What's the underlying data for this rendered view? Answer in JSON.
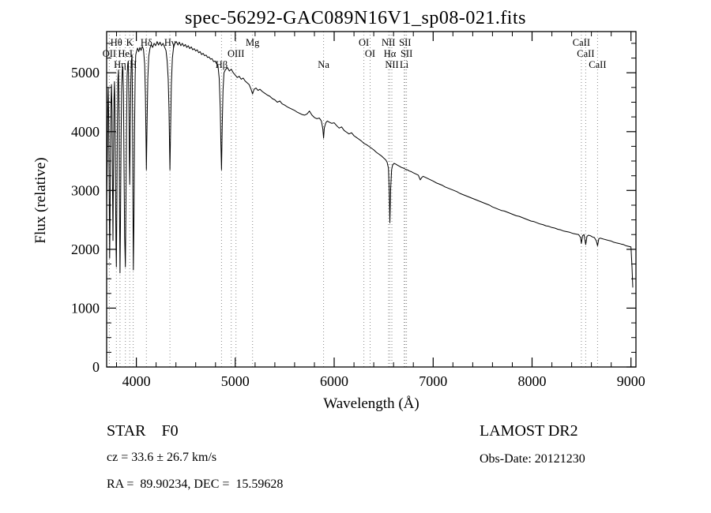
{
  "title": "spec-56292-GAC089N16V1_sp08-021.fits",
  "footer": {
    "class_label": "STAR    F0",
    "survey": "LAMOST DR2",
    "cz": "cz = 33.6 ± 26.7 km/s",
    "obs_date": "Obs-Date: 20121230",
    "coords": "RA =  89.90234, DEC =  15.59628"
  },
  "chart_data": {
    "type": "line",
    "title": "spec-56292-GAC089N16V1_sp08-021.fits",
    "xlabel": "Wavelength (Å)",
    "ylabel": "Flux (relative)",
    "xlim": [
      3700,
      9050
    ],
    "ylim": [
      0,
      5700
    ],
    "x_ticks": [
      4000,
      5000,
      6000,
      7000,
      8000,
      9000
    ],
    "y_ticks": [
      0,
      1000,
      2000,
      3000,
      4000,
      5000
    ],
    "x_minor_step": 200,
    "y_minor_step": 250,
    "grid": false,
    "line_color": "#000000",
    "marker_line_color": "#888888",
    "line_markers": [
      {
        "label": "Hθ",
        "wavelength": 3798,
        "row": 1
      },
      {
        "label": "K",
        "wavelength": 3933,
        "row": 1
      },
      {
        "label": "Hδ",
        "wavelength": 4102,
        "row": 1
      },
      {
        "label": "Hγ",
        "wavelength": 4340,
        "row": 1
      },
      {
        "label": "Mg",
        "wavelength": 5175,
        "row": 1
      },
      {
        "label": "OI",
        "wavelength": 6300,
        "row": 1
      },
      {
        "label": "NII",
        "wavelength": 6548,
        "row": 1
      },
      {
        "label": "SII",
        "wavelength": 6717,
        "row": 1
      },
      {
        "label": "CaII",
        "wavelength": 8498,
        "row": 1
      },
      {
        "label": "OII",
        "wavelength": 3727,
        "row": 2
      },
      {
        "label": "HeI",
        "wavelength": 3889,
        "row": 2
      },
      {
        "label": "",
        "wavelength": 4959,
        "row": 2
      },
      {
        "label": "OIII",
        "wavelength": 5007,
        "row": 2
      },
      {
        "label": "OI",
        "wavelength": 6363,
        "row": 2
      },
      {
        "label": "Hα",
        "wavelength": 6563,
        "row": 2
      },
      {
        "label": "SII",
        "wavelength": 6731,
        "row": 2
      },
      {
        "label": "CaII",
        "wavelength": 8542,
        "row": 2
      },
      {
        "label": "Hη",
        "wavelength": 3835,
        "row": 3
      },
      {
        "label": "H",
        "wavelength": 3968,
        "row": 3
      },
      {
        "label": "Hβ",
        "wavelength": 4861,
        "row": 3
      },
      {
        "label": "Na",
        "wavelength": 5893,
        "row": 3
      },
      {
        "label": "NII",
        "wavelength": 6583,
        "row": 3
      },
      {
        "label": "Li",
        "wavelength": 6707,
        "row": 3
      },
      {
        "label": "CaII",
        "wavelength": 8662,
        "row": 3
      }
    ],
    "series": [
      {
        "name": "spectrum",
        "x": [
          3700,
          3706,
          3711,
          3716,
          3721,
          3726,
          3730,
          3734,
          3739,
          3744,
          3749,
          3754,
          3759,
          3764,
          3769,
          3774,
          3779,
          3784,
          3789,
          3794,
          3798,
          3803,
          3808,
          3814,
          3820,
          3826,
          3831,
          3835,
          3840,
          3846,
          3852,
          3858,
          3864,
          3870,
          3876,
          3882,
          3889,
          3895,
          3901,
          3907,
          3913,
          3919,
          3925,
          3930,
          3933,
          3938,
          3944,
          3950,
          3956,
          3962,
          3966,
          3970,
          3976,
          3982,
          3988,
          3994,
          4000,
          4012,
          4024,
          4036,
          4048,
          4060,
          4072,
          4084,
          4092,
          4098,
          4102,
          4108,
          4116,
          4126,
          4138,
          4150,
          4165,
          4180,
          4195,
          4210,
          4225,
          4240,
          4255,
          4270,
          4285,
          4300,
          4312,
          4322,
          4330,
          4336,
          4340,
          4346,
          4354,
          4364,
          4376,
          4390,
          4405,
          4420,
          4435,
          4450,
          4465,
          4480,
          4495,
          4510,
          4525,
          4540,
          4555,
          4570,
          4585,
          4600,
          4615,
          4630,
          4645,
          4660,
          4675,
          4690,
          4705,
          4720,
          4735,
          4750,
          4765,
          4780,
          4795,
          4810,
          4825,
          4838,
          4848,
          4855,
          4861,
          4868,
          4876,
          4886,
          4900,
          4920,
          4940,
          4960,
          4980,
          5000,
          5020,
          5040,
          5060,
          5080,
          5100,
          5120,
          5140,
          5160,
          5175,
          5190,
          5210,
          5230,
          5250,
          5275,
          5300,
          5325,
          5350,
          5375,
          5400,
          5425,
          5450,
          5475,
          5500,
          5525,
          5550,
          5575,
          5600,
          5625,
          5650,
          5675,
          5700,
          5725,
          5750,
          5775,
          5800,
          5825,
          5850,
          5870,
          5885,
          5893,
          5900,
          5915,
          5930,
          5950,
          5975,
          6000,
          6025,
          6050,
          6075,
          6100,
          6125,
          6150,
          6175,
          6200,
          6225,
          6250,
          6275,
          6300,
          6325,
          6350,
          6375,
          6400,
          6425,
          6450,
          6475,
          6500,
          6520,
          6535,
          6548,
          6556,
          6563,
          6570,
          6580,
          6590,
          6605,
          6620,
          6640,
          6660,
          6680,
          6700,
          6720,
          6740,
          6760,
          6780,
          6800,
          6825,
          6850,
          6870,
          6885,
          6900,
          6925,
          6950,
          6975,
          7000,
          7030,
          7060,
          7090,
          7120,
          7150,
          7180,
          7210,
          7240,
          7270,
          7300,
          7330,
          7360,
          7390,
          7420,
          7450,
          7480,
          7510,
          7540,
          7570,
          7600,
          7630,
          7660,
          7690,
          7720,
          7750,
          7780,
          7810,
          7840,
          7870,
          7900,
          7930,
          7960,
          7990,
          8020,
          8050,
          8080,
          8110,
          8140,
          8170,
          8200,
          8230,
          8260,
          8290,
          8320,
          8350,
          8380,
          8410,
          8440,
          8470,
          8490,
          8498,
          8510,
          8525,
          8542,
          8555,
          8570,
          8590,
          8610,
          8630,
          8650,
          8662,
          8675,
          8690,
          8710,
          8730,
          8750,
          8775,
          8800,
          8825,
          8850,
          8875,
          8900,
          8925,
          8950,
          8975,
          9000,
          9010,
          9018
        ],
        "y": [
          2700,
          3500,
          4350,
          4750,
          4200,
          2900,
          1850,
          2500,
          3700,
          4500,
          4800,
          4350,
          3100,
          2150,
          3300,
          4550,
          4850,
          4400,
          3300,
          2100,
          1700,
          2700,
          4000,
          4900,
          5050,
          4200,
          2500,
          1600,
          2450,
          3900,
          4750,
          5050,
          5100,
          4650,
          3400,
          2200,
          1700,
          2700,
          4100,
          4950,
          5150,
          5200,
          4500,
          3500,
          3100,
          3950,
          4850,
          5200,
          5300,
          4300,
          2700,
          1650,
          2600,
          4000,
          4950,
          5300,
          5350,
          5420,
          5360,
          5430,
          5380,
          5450,
          5400,
          5150,
          4600,
          3900,
          3350,
          4100,
          4900,
          5280,
          5420,
          5480,
          5430,
          5500,
          5460,
          5530,
          5470,
          5520,
          5460,
          5500,
          5440,
          5380,
          5200,
          4900,
          4400,
          3800,
          3350,
          4000,
          4800,
          5250,
          5430,
          5500,
          5530,
          5470,
          5520,
          5460,
          5500,
          5450,
          5480,
          5430,
          5460,
          5410,
          5440,
          5390,
          5410,
          5370,
          5390,
          5340,
          5360,
          5310,
          5330,
          5290,
          5300,
          5260,
          5270,
          5230,
          5240,
          5190,
          5200,
          5160,
          5120,
          4900,
          4400,
          3800,
          3350,
          4100,
          4700,
          5000,
          5050,
          5090,
          5030,
          5060,
          5000,
          4960,
          4920,
          4940,
          4890,
          4910,
          4860,
          4830,
          4800,
          4720,
          4640,
          4720,
          4740,
          4700,
          4720,
          4680,
          4650,
          4620,
          4600,
          4560,
          4540,
          4500,
          4520,
          4470,
          4450,
          4420,
          4400,
          4380,
          4360,
          4330,
          4310,
          4290,
          4280,
          4300,
          4350,
          4280,
          4240,
          4220,
          4230,
          4180,
          4050,
          3890,
          4060,
          4150,
          4180,
          4160,
          4140,
          4150,
          4100,
          4060,
          4080,
          4020,
          3990,
          3960,
          3980,
          3930,
          3900,
          3870,
          3840,
          3800,
          3780,
          3750,
          3720,
          3690,
          3650,
          3620,
          3590,
          3550,
          3520,
          3480,
          3380,
          3000,
          2450,
          3000,
          3350,
          3430,
          3460,
          3450,
          3430,
          3410,
          3390,
          3380,
          3360,
          3350,
          3330,
          3320,
          3300,
          3280,
          3260,
          3180,
          3220,
          3240,
          3220,
          3200,
          3180,
          3160,
          3130,
          3110,
          3090,
          3060,
          3040,
          3020,
          3000,
          2980,
          2950,
          2930,
          2910,
          2890,
          2870,
          2850,
          2830,
          2810,
          2790,
          2770,
          2750,
          2720,
          2700,
          2680,
          2660,
          2650,
          2630,
          2610,
          2590,
          2570,
          2560,
          2540,
          2520,
          2500,
          2480,
          2470,
          2450,
          2430,
          2420,
          2400,
          2390,
          2370,
          2360,
          2340,
          2330,
          2310,
          2300,
          2290,
          2270,
          2260,
          2250,
          2200,
          2100,
          2230,
          2250,
          2080,
          2220,
          2240,
          2230,
          2210,
          2200,
          2140,
          2060,
          2180,
          2190,
          2180,
          2170,
          2160,
          2150,
          2140,
          2120,
          2110,
          2100,
          2090,
          2080,
          2060,
          2050,
          2040,
          1700,
          1350
        ]
      }
    ]
  }
}
